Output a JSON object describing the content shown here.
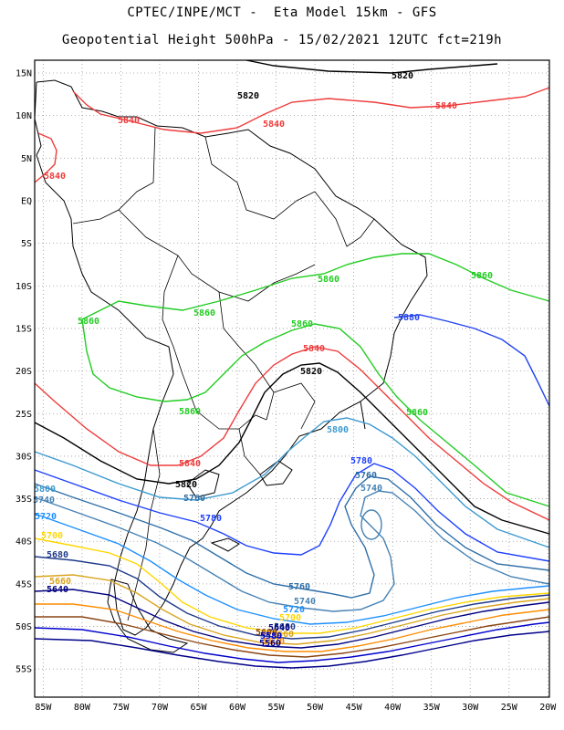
{
  "title_line1": "CPTEC/INPE/MCT -  Eta Model 15km - GFS",
  "title_line2": "Geopotential Height 500hPa - 15/02/2021 12UTC fct=219h",
  "lat_labels": [
    "15N",
    "10N",
    "5N",
    "EQ",
    "5S",
    "10S",
    "15S",
    "20S",
    "25S",
    "30S",
    "35S",
    "40S",
    "45S",
    "50S",
    "55S"
  ],
  "lon_labels": [
    "85W",
    "80W",
    "75W",
    "70W",
    "65W",
    "60W",
    "55W",
    "50W",
    "45W",
    "40W",
    "35W",
    "30W",
    "25W",
    "20W"
  ],
  "contour_colors": {
    "5560": "#00008b",
    "5580": "#0000cd",
    "5600": "#8b4513",
    "5620": "#ff8c00",
    "5640": "#000080",
    "5660": "#daa520",
    "5680": "#1e3a8a",
    "5700": "#ffd700",
    "5720": "#1e90ff",
    "5740": "#4682b4",
    "5760": "#2f6fa8",
    "5780": "#1e40ff",
    "5800": "#3b9ad0",
    "5820": "#000000",
    "5840": "#ef3b3b",
    "5860": "#22cc22",
    "5880": "#2244ee"
  },
  "contour_labels": [
    {
      "text": "5820",
      "color": "#000000"
    },
    {
      "text": "5820",
      "color": "#000000"
    },
    {
      "text": "5840",
      "color": "#ef3b3b"
    },
    {
      "text": "5840",
      "color": "#ef3b3b"
    },
    {
      "text": "5840",
      "color": "#ef3b3b"
    },
    {
      "text": "5840",
      "color": "#ef3b3b"
    },
    {
      "text": "5860",
      "color": "#22cc22"
    },
    {
      "text": "5860",
      "color": "#22cc22"
    },
    {
      "text": "5860",
      "color": "#22cc22"
    },
    {
      "text": "5860",
      "color": "#22cc22"
    },
    {
      "text": "5860",
      "color": "#22cc22"
    },
    {
      "text": "5880",
      "color": "#2244ee"
    },
    {
      "text": "5840",
      "color": "#ef3b3b"
    },
    {
      "text": "5820",
      "color": "#000000"
    },
    {
      "text": "5860",
      "color": "#22cc22"
    },
    {
      "text": "5860",
      "color": "#22cc22"
    },
    {
      "text": "5800",
      "color": "#3b9ad0"
    },
    {
      "text": "5840",
      "color": "#ef3b3b"
    },
    {
      "text": "5780",
      "color": "#1e40ff"
    },
    {
      "text": "5760",
      "color": "#2f6fa8"
    },
    {
      "text": "5740",
      "color": "#4682b4"
    },
    {
      "text": "5820",
      "color": "#000000"
    },
    {
      "text": "5760",
      "color": "#2f6fa8"
    },
    {
      "text": "5800",
      "color": "#3b9ad0"
    },
    {
      "text": "5740",
      "color": "#4682b4"
    },
    {
      "text": "5720",
      "color": "#1e90ff"
    },
    {
      "text": "5780",
      "color": "#1e40ff"
    },
    {
      "text": "5700",
      "color": "#ffd700"
    },
    {
      "text": "5680",
      "color": "#1e3a8a"
    },
    {
      "text": "5660",
      "color": "#daa520"
    },
    {
      "text": "5640",
      "color": "#000080"
    },
    {
      "text": "5760",
      "color": "#2f6fa8"
    },
    {
      "text": "5740",
      "color": "#4682b4"
    },
    {
      "text": "5720",
      "color": "#1e90ff"
    },
    {
      "text": "5700",
      "color": "#ffd700"
    },
    {
      "text": "5680",
      "color": "#1e3a8a"
    },
    {
      "text": "5660",
      "color": "#daa520"
    },
    {
      "text": "5640",
      "color": "#000080"
    },
    {
      "text": "5620",
      "color": "#ff8c00"
    },
    {
      "text": "5600",
      "color": "#8b4513"
    },
    {
      "text": "5580",
      "color": "#0000cd"
    },
    {
      "text": "5560",
      "color": "#00008b"
    }
  ]
}
